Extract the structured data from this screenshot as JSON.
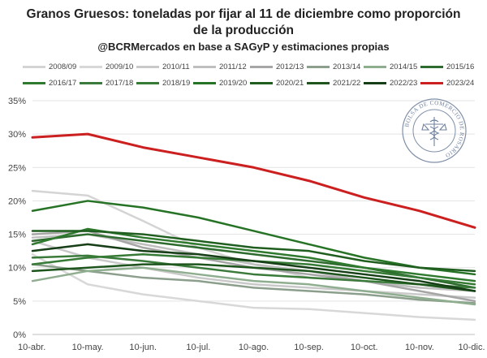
{
  "title_line1": "Granos Gruesos: toneladas por fijar al 11 de diciembre como proporción",
  "title_line2": "de la producción",
  "subtitle": "@BCRMercados en base a SAGyP y estimaciones propias",
  "seal_text": "BOLSA DE COMERCIO DE ROSARIO",
  "chart_data": {
    "type": "line",
    "title": "Granos Gruesos: toneladas por fijar al 11 de diciembre como proporción de la producción",
    "xlabel": "",
    "ylabel": "",
    "x_ticks": [
      "10-abr.",
      "10-may.",
      "10-jun.",
      "10-jul.",
      "10-ago.",
      "10-sep.",
      "10-oct.",
      "10-nov.",
      "10-dic."
    ],
    "y_ticks": [
      "0%",
      "5%",
      "10%",
      "15%",
      "20%",
      "25%",
      "30%",
      "35%"
    ],
    "ylim": [
      0,
      35
    ],
    "x": [
      0,
      1,
      2,
      3,
      4,
      5,
      6,
      7,
      8
    ],
    "grid": true,
    "legend_position": "top",
    "series": [
      {
        "name": "2008/09",
        "color": "#d4d4d4",
        "width": 2.5,
        "values": [
          21.5,
          20.8,
          17.0,
          13.0,
          10.5,
          8.5,
          8.0,
          7.0,
          6.5
        ]
      },
      {
        "name": "2009/10",
        "color": "#d8d8d8",
        "width": 2.5,
        "values": [
          12.0,
          7.5,
          6.0,
          5.0,
          4.0,
          3.8,
          3.2,
          2.6,
          2.2
        ]
      },
      {
        "name": "2010/11",
        "color": "#c9c9c9",
        "width": 2.5,
        "values": [
          14.0,
          11.5,
          10.0,
          8.5,
          7.5,
          7.0,
          6.5,
          6.0,
          5.5
        ]
      },
      {
        "name": "2011/12",
        "color": "#bfbfbf",
        "width": 2.5,
        "values": [
          14.5,
          15.0,
          13.5,
          12.0,
          10.5,
          9.5,
          8.0,
          7.0,
          6.5
        ]
      },
      {
        "name": "2012/13",
        "color": "#a6a6a6",
        "width": 2.5,
        "values": [
          15.0,
          15.5,
          13.0,
          11.5,
          10.0,
          9.0,
          8.0,
          6.5,
          5.0
        ]
      },
      {
        "name": "2013/14",
        "color": "#8c9e8c",
        "width": 2.5,
        "values": [
          10.5,
          9.5,
          8.5,
          8.0,
          7.0,
          6.5,
          6.0,
          5.2,
          4.7
        ]
      },
      {
        "name": "2014/15",
        "color": "#8fae8f",
        "width": 2.5,
        "values": [
          8.0,
          9.5,
          10.0,
          9.0,
          8.0,
          7.5,
          6.5,
          5.5,
          4.5
        ]
      },
      {
        "name": "2015/16",
        "color": "#2e6b2e",
        "width": 2.5,
        "values": [
          14.0,
          15.0,
          14.0,
          13.0,
          12.0,
          11.0,
          10.0,
          8.5,
          7.0
        ]
      },
      {
        "name": "2016/17",
        "color": "#2f7a2f",
        "width": 2.5,
        "values": [
          13.5,
          15.8,
          14.5,
          13.5,
          12.5,
          11.5,
          10.0,
          9.0,
          8.0
        ]
      },
      {
        "name": "2017/18",
        "color": "#3a7a3a",
        "width": 2.5,
        "values": [
          11.5,
          11.8,
          11.0,
          10.0,
          9.0,
          8.5,
          8.0,
          7.5,
          7.0
        ]
      },
      {
        "name": "2018/19",
        "color": "#357a35",
        "width": 2.5,
        "values": [
          10.5,
          11.5,
          12.0,
          11.5,
          11.0,
          10.5,
          9.5,
          8.5,
          7.5
        ]
      },
      {
        "name": "2019/20",
        "color": "#267326",
        "width": 2.5,
        "values": [
          18.5,
          20.0,
          19.0,
          17.5,
          15.5,
          13.5,
          11.5,
          10.0,
          9.0
        ]
      },
      {
        "name": "2020/21",
        "color": "#1f5e1f",
        "width": 2.5,
        "values": [
          15.5,
          15.5,
          15.0,
          14.0,
          13.0,
          12.5,
          11.0,
          10.0,
          9.5
        ]
      },
      {
        "name": "2021/22",
        "color": "#1d551d",
        "width": 2.5,
        "values": [
          9.5,
          10.0,
          10.5,
          10.5,
          10.0,
          9.5,
          8.5,
          7.5,
          6.5
        ]
      },
      {
        "name": "2022/23",
        "color": "#173f17",
        "width": 2.5,
        "values": [
          12.5,
          13.5,
          12.5,
          12.0,
          11.0,
          10.0,
          9.0,
          8.0,
          6.5
        ]
      },
      {
        "name": "2023/24",
        "color": "#cc1f1f",
        "width": 3.0,
        "values": [
          29.5,
          30.0,
          28.0,
          26.5,
          25.0,
          23.0,
          20.5,
          18.5,
          16.0
        ]
      }
    ]
  }
}
